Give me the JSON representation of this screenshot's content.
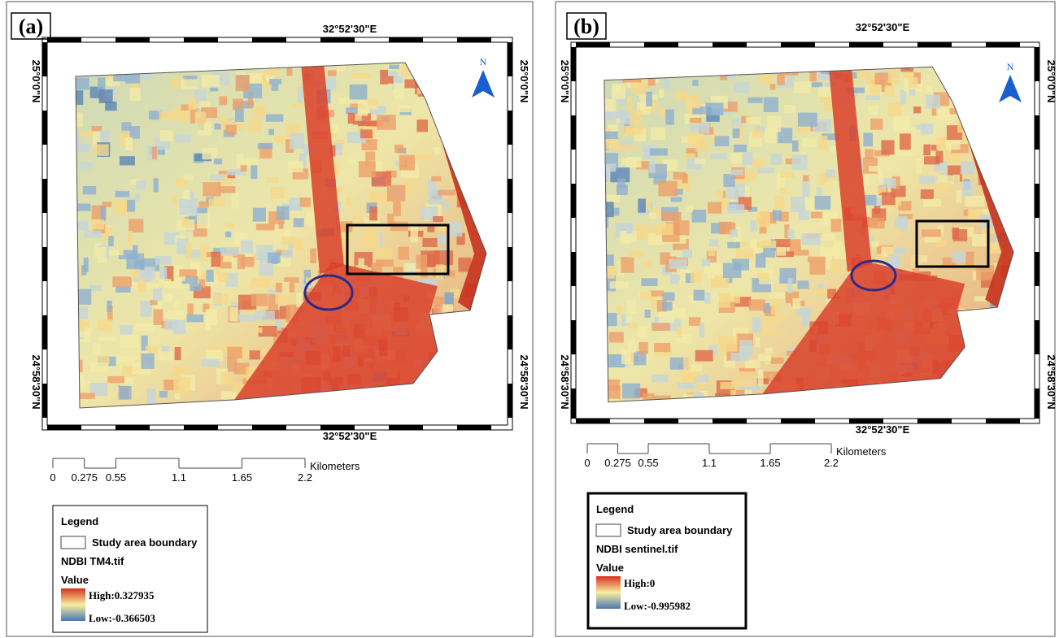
{
  "panels": [
    {
      "label": "(a)",
      "top_coordinate": "32°52'30\"E",
      "bottom_coordinate": "32°52'30\"E",
      "left_coordinates": [
        "25°0'0\"N",
        "24°58'30\"N"
      ],
      "right_coordinates": [
        "25°0'0\"N",
        "24°58'30\"N"
      ],
      "north": "N",
      "scale": {
        "ticks": [
          0,
          0.275,
          0.55,
          1.1,
          1.65,
          2.2
        ],
        "unit": "Kilometers"
      },
      "legend": {
        "title": "Legend",
        "boundary": "Study area boundary",
        "layer": "NDBI TM4.tif",
        "value_title": "Value",
        "high": "High:0.327935",
        "low": "Low:-0.366503"
      }
    },
    {
      "label": "(b)",
      "top_coordinate": "32°52'30\"E",
      "bottom_coordinate": "32°52'30\"E",
      "left_coordinates": [
        "25°0'0\"N",
        "24°58'30\"N"
      ],
      "right_coordinates": [
        "25°0'0\"N",
        "24°58'30\"N"
      ],
      "north": "N",
      "scale": {
        "ticks": [
          0,
          0.275,
          0.55,
          1.1,
          1.65,
          2.2
        ],
        "unit": "Kilometers"
      },
      "legend": {
        "title": "Legend",
        "boundary": "Study area boundary",
        "layer": "NDBI sentinel.tif",
        "value_title": "Value",
        "high": "High:0",
        "low": "Low:-0.995982"
      }
    }
  ]
}
